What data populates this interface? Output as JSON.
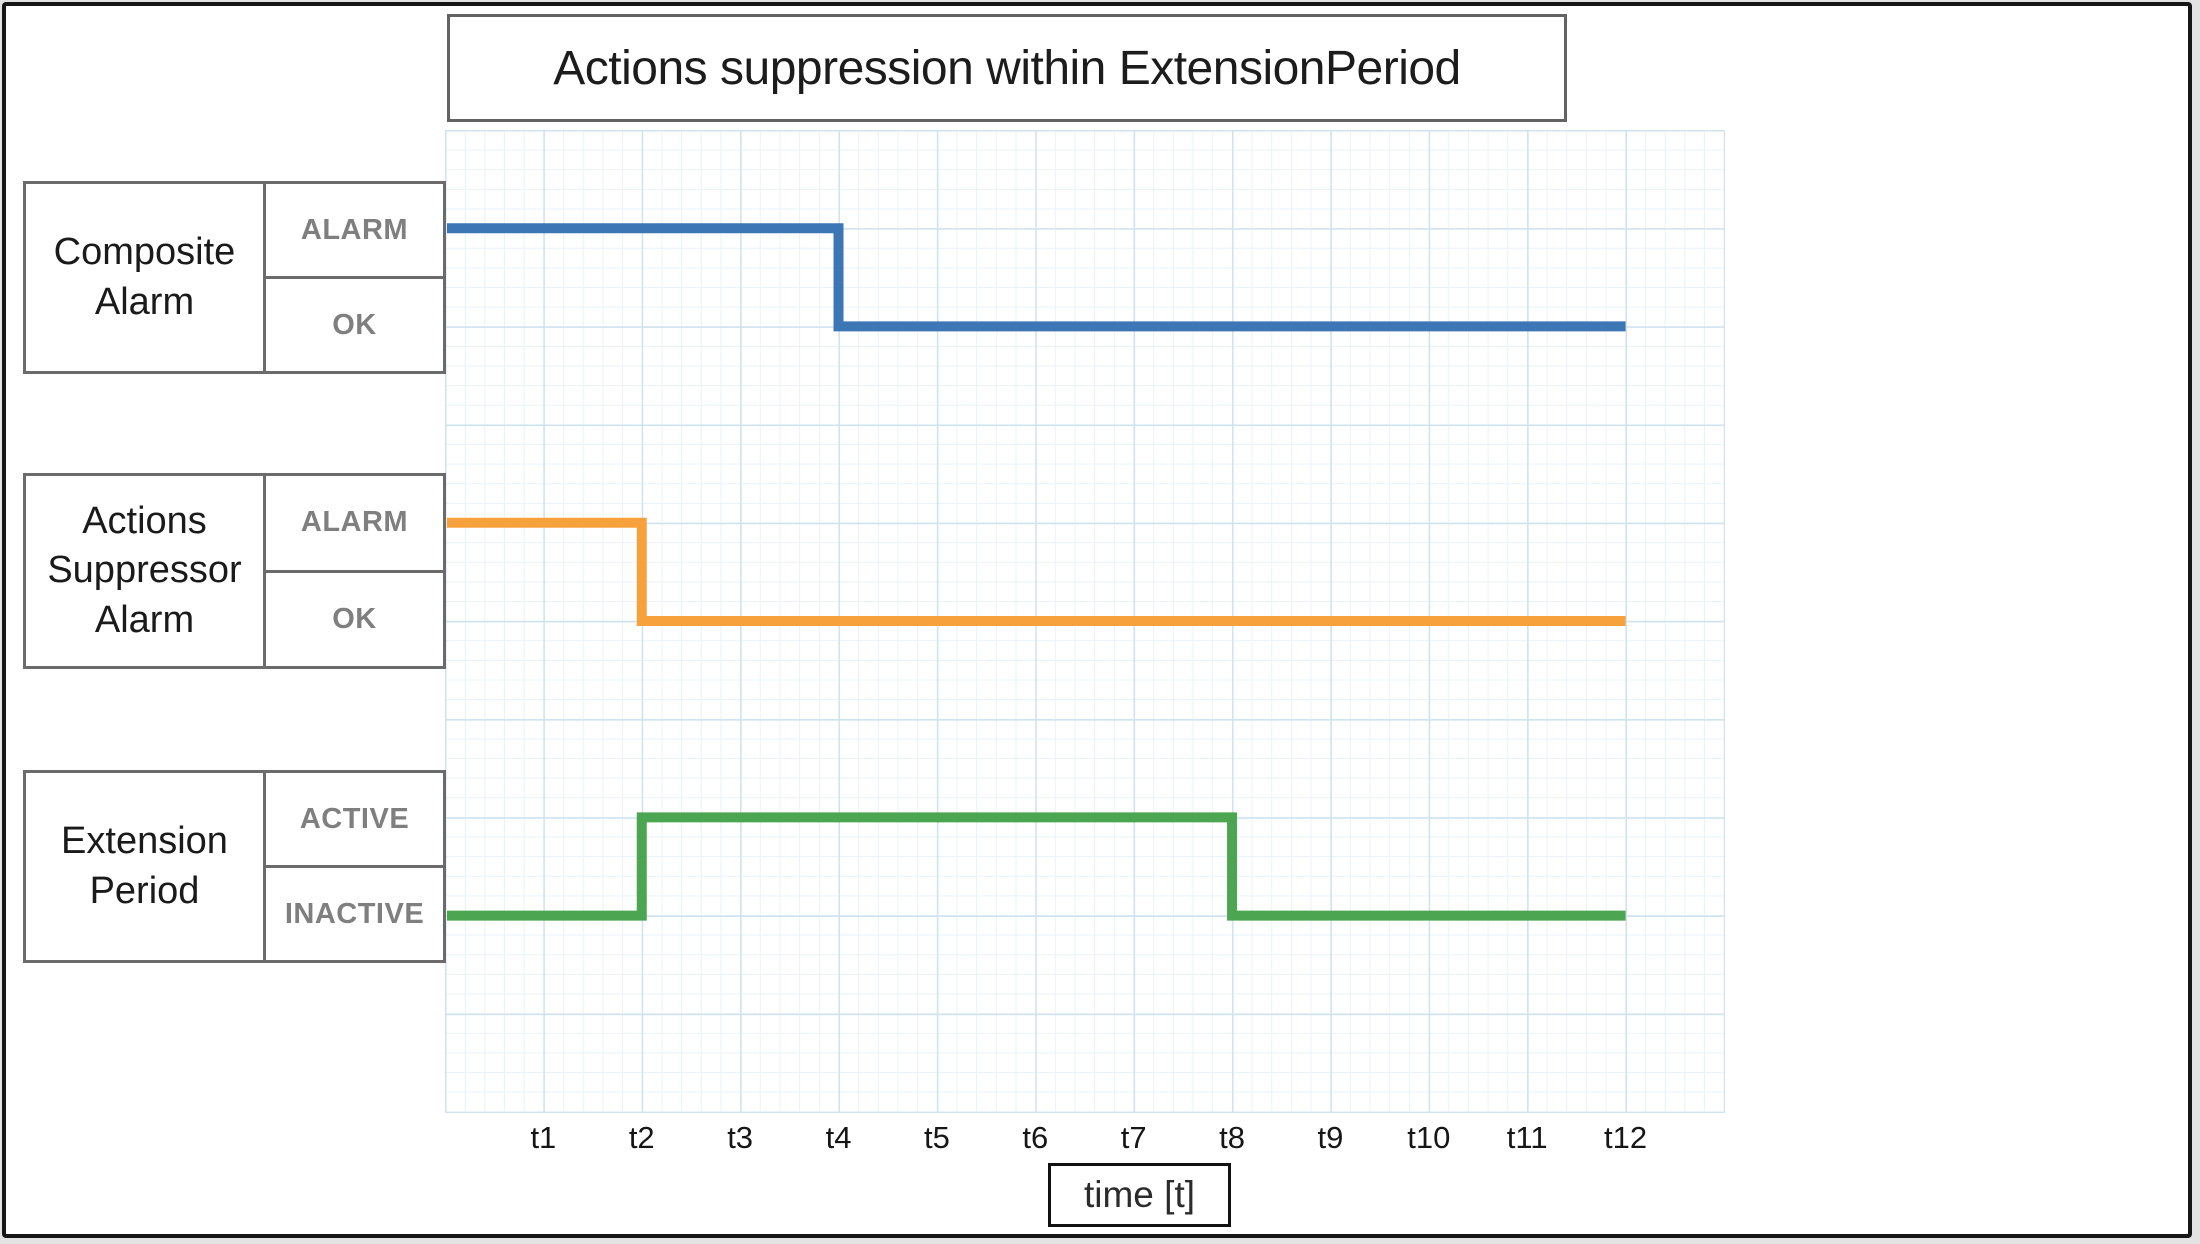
{
  "chart_data": {
    "type": "line",
    "variant": "timing-step-diagram",
    "title": "Actions suppression within ExtensionPeriod",
    "xlabel": "time [t]",
    "x_ticks": [
      "t1",
      "t2",
      "t3",
      "t4",
      "t5",
      "t6",
      "t7",
      "t8",
      "t9",
      "t10",
      "t11",
      "t12"
    ],
    "x_range_units": [
      0,
      13
    ],
    "grid": "on",
    "grid_minor_color": "#e9f3f9",
    "grid_major_color": "#cfe2ef",
    "series": [
      {
        "name": "Composite Alarm",
        "color": "#3c76b4",
        "high_label": "ALARM",
        "low_label": "OK",
        "high_row": 1,
        "low_row": 2,
        "end_t": 12,
        "steps": [
          {
            "t": 0,
            "level": "high"
          },
          {
            "t": 4,
            "level": "low"
          }
        ]
      },
      {
        "name": "Actions Suppressor Alarm",
        "color": "#f7a13c",
        "high_label": "ALARM",
        "low_label": "OK",
        "high_row": 4,
        "low_row": 5,
        "end_t": 12,
        "steps": [
          {
            "t": 0,
            "level": "high"
          },
          {
            "t": 2,
            "level": "low"
          }
        ]
      },
      {
        "name": "Extension Period",
        "color": "#4ca551",
        "high_label": "ACTIVE",
        "low_label": "INACTIVE",
        "high_row": 7,
        "low_row": 8,
        "end_t": 12,
        "steps": [
          {
            "t": 0,
            "level": "low"
          },
          {
            "t": 2,
            "level": "high"
          },
          {
            "t": 8,
            "level": "low"
          }
        ]
      }
    ]
  }
}
